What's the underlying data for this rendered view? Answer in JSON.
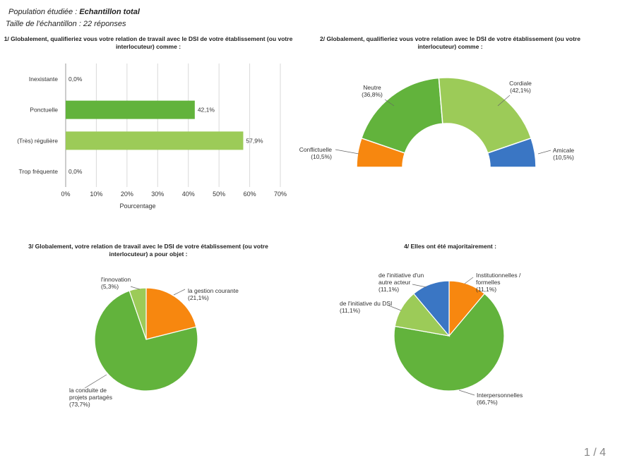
{
  "header": {
    "line1_prefix": "Population étudiée : ",
    "line1_value": "Echantillon total",
    "line2": "Taille de l'échantillon : 22 réponses"
  },
  "page_number": "1 / 4",
  "colors": {
    "orange": "#f7870f",
    "green": "#62b33c",
    "light_green": "#9ccb58",
    "blue": "#3a76c4",
    "slice_border": "#ffffff"
  },
  "chart_data": [
    {
      "id": "q1",
      "type": "bar",
      "orientation": "horizontal",
      "title": "1/ Globalement, qualifieriez vous votre relation de travail avec le DSI de votre établissement (ou votre interlocuteur) comme :",
      "categories": [
        "Inexistante",
        "Ponctuelle",
        "(Très) régulière",
        "Trop fréquente"
      ],
      "values": [
        0.0,
        42.1,
        57.9,
        0.0
      ],
      "value_labels": [
        "0,0%",
        "42,1%",
        "57,9%",
        "0,0%"
      ],
      "bar_colors": [
        "#62b33c",
        "#62b33c",
        "#9ccb58",
        "#62b33c"
      ],
      "xlim": [
        0,
        70
      ],
      "x_ticks": [
        "0%",
        "10%",
        "20%",
        "30%",
        "40%",
        "50%",
        "60%",
        "70%"
      ],
      "xlabel": "Pourcentage",
      "grid": true
    },
    {
      "id": "q2",
      "type": "pie",
      "variant": "half-donut",
      "title": "2/ Globalement, qualifieriez vous votre relation avec le DSI de votre établissement (ou votre interlocuteur) comme :",
      "slices": [
        {
          "name": "Conflictuelle",
          "pct_label": "(10,5%)",
          "value": 10.5,
          "color": "#f7870f"
        },
        {
          "name": "Neutre",
          "pct_label": "(36,8%)",
          "value": 36.8,
          "color": "#62b33c"
        },
        {
          "name": "Cordiale",
          "pct_label": "(42,1%)",
          "value": 42.1,
          "color": "#9ccb58"
        },
        {
          "name": "Amicale",
          "pct_label": "(10,5%)",
          "value": 10.5,
          "color": "#3a76c4"
        }
      ]
    },
    {
      "id": "q3",
      "type": "pie",
      "title": "3/ Globalement, votre relation de travail avec le DSI de votre établissement (ou votre interlocuteur) a pour objet :",
      "slices": [
        {
          "name": "la gestion courante",
          "pct_label": "(21,1%)",
          "value": 21.1,
          "color": "#f7870f"
        },
        {
          "name": "la conduite de projets partagés",
          "pct_label": "(73,7%)",
          "value": 73.7,
          "color": "#62b33c"
        },
        {
          "name": "l'innovation",
          "pct_label": "(5,3%)",
          "value": 5.3,
          "color": "#9ccb58"
        }
      ]
    },
    {
      "id": "q4",
      "type": "pie",
      "title": "4/ Elles ont été majoritairement :",
      "slices": [
        {
          "name": "Institutionnelles / formelles",
          "pct_label": "(11,1%)",
          "value": 11.1,
          "color": "#f7870f"
        },
        {
          "name": "Interpersonnelles",
          "pct_label": "(66,7%)",
          "value": 66.7,
          "color": "#62b33c"
        },
        {
          "name": "de l'initiative du DSI",
          "pct_label": "(11,1%)",
          "value": 11.1,
          "color": "#9ccb58"
        },
        {
          "name": "de l'initiative d'un autre acteur",
          "pct_label": "(11,1%)",
          "value": 11.1,
          "color": "#3a76c4"
        }
      ]
    }
  ]
}
